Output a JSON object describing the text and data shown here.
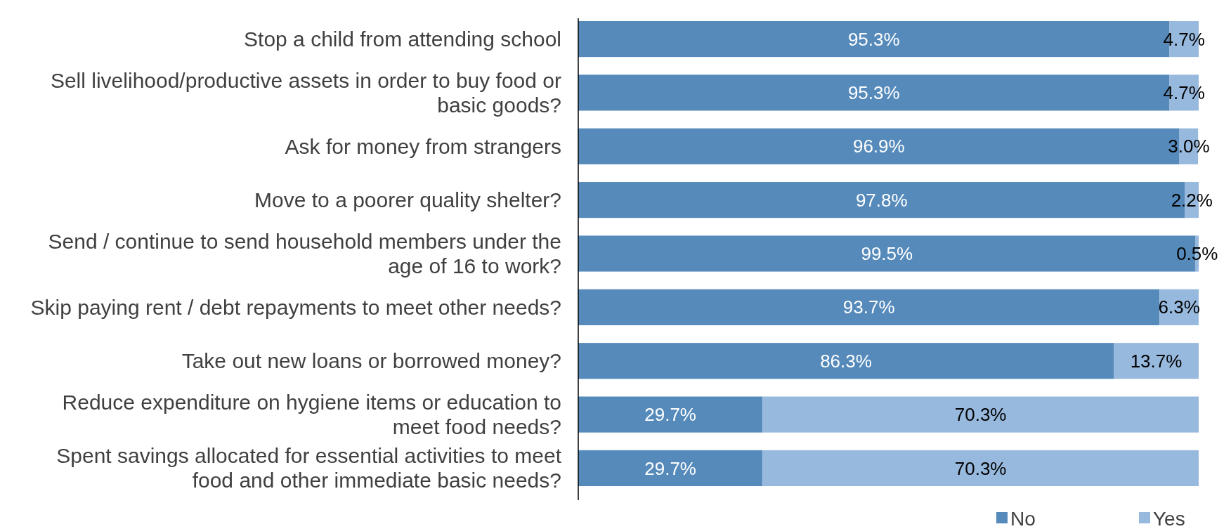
{
  "chart_data": {
    "type": "bar",
    "orientation": "horizontal",
    "stacked": true,
    "legend": "bottom right",
    "categories": [
      "Stop a child from attending school",
      "Sell livelihood/productive assets in order to buy food or basic goods?",
      "Ask for money from strangers",
      "Move to a poorer quality shelter?",
      "Send / continue to send household members under the age of 16 to work?",
      "Skip paying rent / debt repayments to meet other needs?",
      "Take out new loans or borrowed money?",
      "Reduce expenditure on hygiene items or education to meet food needs?",
      "Spent savings allocated for essential activities to meet food and other immediate basic needs?"
    ],
    "series": [
      {
        "name": "No",
        "color": "#558abb",
        "values": [
          95.3,
          95.3,
          96.9,
          97.8,
          99.5,
          93.7,
          86.3,
          29.7,
          29.7
        ],
        "value_labels": [
          "95.3%",
          "95.3%",
          "96.9%",
          "97.8%",
          "99.5%",
          "93.7%",
          "86.3%",
          "29.7%",
          "29.7%"
        ]
      },
      {
        "name": "Yes",
        "color": "#98b9de",
        "values": [
          4.7,
          4.7,
          3.0,
          2.2,
          0.5,
          6.3,
          13.7,
          70.3,
          70.3
        ],
        "value_labels": [
          "4.7%",
          "4.7%",
          "3.0%",
          "2.2%",
          "0.5%",
          "6.3%",
          "13.7%",
          "70.3%",
          "70.3%"
        ]
      }
    ]
  }
}
